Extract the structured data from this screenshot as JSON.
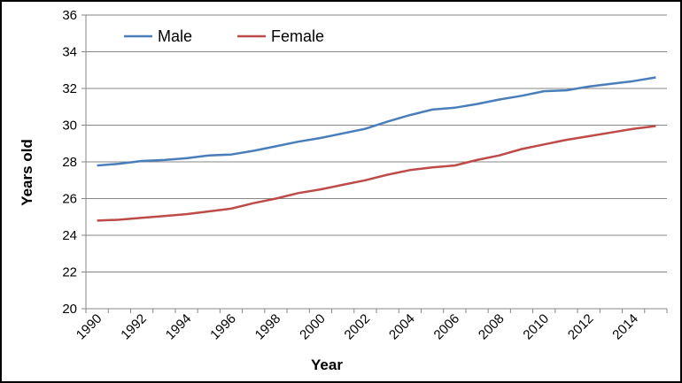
{
  "chart_data": {
    "type": "line",
    "xlabel": "Year",
    "ylabel": "Years old",
    "ylim": [
      20,
      36
    ],
    "yticks": [
      20,
      22,
      24,
      26,
      28,
      30,
      32,
      34,
      36
    ],
    "xticks": [
      1990,
      1992,
      1994,
      1996,
      1998,
      2000,
      2002,
      2004,
      2006,
      2008,
      2010,
      2012,
      2014
    ],
    "grid": "horizontal",
    "legend": "top-left",
    "x": [
      1990,
      1991,
      1992,
      1993,
      1994,
      1995,
      1996,
      1997,
      1998,
      1999,
      2000,
      2001,
      2002,
      2003,
      2004,
      2005,
      2006,
      2007,
      2008,
      2009,
      2010,
      2011,
      2012,
      2013,
      2014,
      2015
    ],
    "series": [
      {
        "name": "Male",
        "color": "#4a7ebb",
        "values": [
          27.8,
          27.9,
          28.05,
          28.1,
          28.2,
          28.35,
          28.4,
          28.6,
          28.85,
          29.1,
          29.3,
          29.55,
          29.8,
          30.2,
          30.55,
          30.85,
          30.95,
          31.15,
          31.4,
          31.6,
          31.85,
          31.9,
          32.1,
          32.25,
          32.4,
          32.6
        ]
      },
      {
        "name": "Female",
        "color": "#be4b48",
        "values": [
          24.8,
          24.85,
          24.95,
          25.05,
          25.15,
          25.3,
          25.45,
          25.75,
          26.0,
          26.3,
          26.5,
          26.75,
          27.0,
          27.3,
          27.55,
          27.7,
          27.8,
          28.1,
          28.35,
          28.7,
          28.95,
          29.2,
          29.4,
          29.6,
          29.8,
          29.95
        ]
      }
    ]
  }
}
